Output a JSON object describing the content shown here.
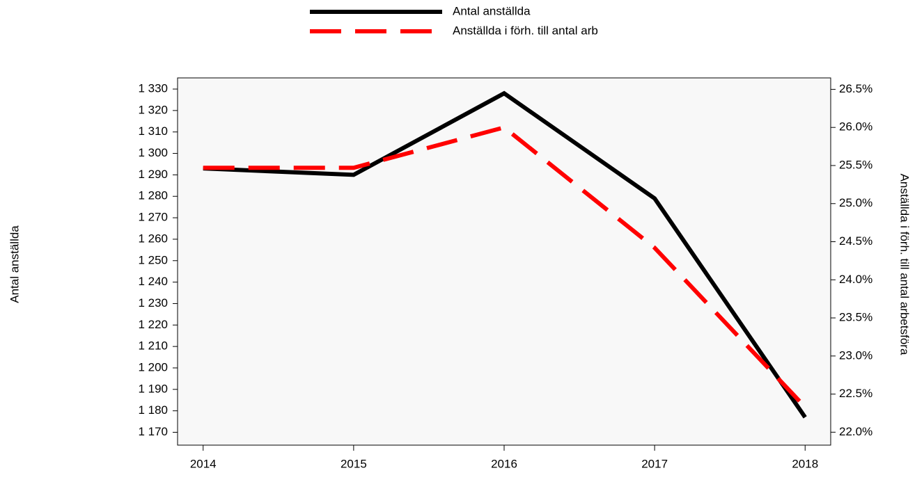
{
  "chart_data": {
    "type": "line",
    "x": [
      2014,
      2015,
      2016,
      2017,
      2018
    ],
    "xlim": [
      2013.83,
      2018.17
    ],
    "xticks": [
      2014,
      2015,
      2016,
      2017,
      2018
    ],
    "ylabel": "Antal anställda",
    "y2label": "Anställda i förh. till antal arbetsföra",
    "ylim": [
      1164,
      1335.2
    ],
    "yticks": [
      {
        "value": 1170,
        "label": "1 170"
      },
      {
        "value": 1180,
        "label": "1 180"
      },
      {
        "value": 1190,
        "label": "1 190"
      },
      {
        "value": 1200,
        "label": "1 200"
      },
      {
        "value": 1210,
        "label": "1 210"
      },
      {
        "value": 1220,
        "label": "1 220"
      },
      {
        "value": 1230,
        "label": "1 230"
      },
      {
        "value": 1240,
        "label": "1 240"
      },
      {
        "value": 1250,
        "label": "1 250"
      },
      {
        "value": 1260,
        "label": "1 260"
      },
      {
        "value": 1270,
        "label": "1 270"
      },
      {
        "value": 1280,
        "label": "1 280"
      },
      {
        "value": 1290,
        "label": "1 290"
      },
      {
        "value": 1300,
        "label": "1 300"
      },
      {
        "value": 1310,
        "label": "1 310"
      },
      {
        "value": 1320,
        "label": "1 320"
      },
      {
        "value": 1330,
        "label": "1 330"
      }
    ],
    "y2lim": [
      21.83,
      26.65
    ],
    "y2ticks": [
      {
        "value": 22.0,
        "label": "22.0%"
      },
      {
        "value": 22.5,
        "label": "22.5%"
      },
      {
        "value": 23.0,
        "label": "23.0%"
      },
      {
        "value": 23.5,
        "label": "23.5%"
      },
      {
        "value": 24.0,
        "label": "24.0%"
      },
      {
        "value": 24.5,
        "label": "24.5%"
      },
      {
        "value": 25.0,
        "label": "25.0%"
      },
      {
        "value": 25.5,
        "label": "25.5%"
      },
      {
        "value": 26.0,
        "label": "26.0%"
      },
      {
        "value": 26.5,
        "label": "26.5%"
      }
    ],
    "series": [
      {
        "name": "Antal anställda",
        "color": "#000000",
        "values": [
          1293,
          1290,
          1328,
          1279,
          1177
        ]
      },
      {
        "name": "Anställda i förh. till antal arb",
        "color": "#ff0000",
        "axis": "y2",
        "dashed": true,
        "values": [
          25.47,
          25.47,
          26.0,
          24.42,
          22.33
        ]
      }
    ]
  }
}
